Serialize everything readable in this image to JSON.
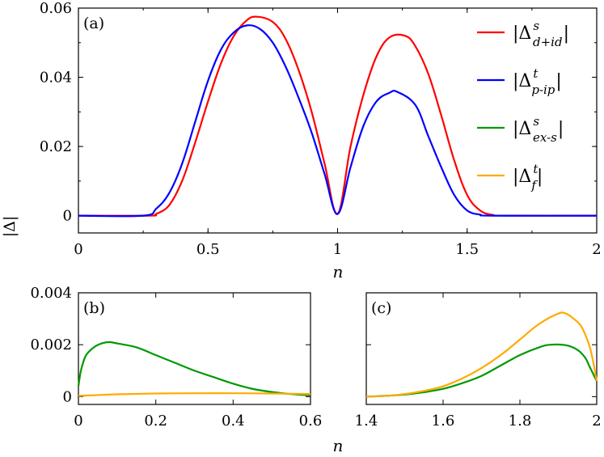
{
  "chart_data": [
    {
      "id": "a",
      "type": "line",
      "panel_label": "(a)",
      "xlabel": "n",
      "ylabel": "|Δ|",
      "xlim": [
        0,
        2
      ],
      "ylim": [
        -0.005,
        0.06
      ],
      "xticks": [
        "0",
        "0.5",
        "1",
        "1.5",
        "2"
      ],
      "yticks": [
        "0",
        "0.02",
        "0.04",
        "0.06"
      ],
      "legend_position": "right",
      "series": [
        {
          "name": "|Δ^s_{d+id}|",
          "color": "#ff0000",
          "x": [
            0,
            0.27,
            0.3,
            0.35,
            0.4,
            0.45,
            0.5,
            0.55,
            0.6,
            0.65,
            0.69,
            0.75,
            0.8,
            0.85,
            0.9,
            0.95,
            1.0,
            1.05,
            1.1,
            1.15,
            1.2,
            1.26,
            1.3,
            1.35,
            1.4,
            1.45,
            1.5,
            1.55,
            1.6,
            1.65,
            2.0
          ],
          "y": [
            0,
            0,
            0.0005,
            0.003,
            0.01,
            0.021,
            0.033,
            0.044,
            0.052,
            0.0565,
            0.0575,
            0.056,
            0.051,
            0.042,
            0.03,
            0.015,
            0.0005,
            0.02,
            0.035,
            0.046,
            0.0515,
            0.052,
            0.049,
            0.041,
            0.029,
            0.016,
            0.006,
            0.0015,
            0.0002,
            0,
            0
          ]
        },
        {
          "name": "|Δ^t_{p-ip}|",
          "color": "#0000ff",
          "x": [
            0,
            0.25,
            0.3,
            0.35,
            0.4,
            0.45,
            0.5,
            0.55,
            0.6,
            0.65,
            0.7,
            0.75,
            0.8,
            0.85,
            0.9,
            0.95,
            1.0,
            1.05,
            1.1,
            1.15,
            1.2,
            1.23,
            1.3,
            1.35,
            1.4,
            1.45,
            1.5,
            1.55,
            1.6,
            2.0
          ],
          "y": [
            0,
            0,
            0.002,
            0.0065,
            0.015,
            0.027,
            0.039,
            0.048,
            0.053,
            0.055,
            0.054,
            0.05,
            0.043,
            0.034,
            0.024,
            0.012,
            0.0005,
            0.014,
            0.026,
            0.033,
            0.0355,
            0.0358,
            0.032,
            0.023,
            0.014,
            0.006,
            0.0015,
            0.0003,
            0,
            0
          ]
        },
        {
          "name": "|Δ^s_{ex-s}|",
          "color": "#009900",
          "x": [],
          "y": []
        },
        {
          "name": "|Δ^t_f|",
          "color": "#ffaa00",
          "x": [],
          "y": []
        }
      ],
      "legend_labels": [
        {
          "base": "|Δ",
          "sup": "s",
          "sub": "d+id",
          "end": "|"
        },
        {
          "base": "|Δ",
          "sup": "t",
          "sub": "p-ip",
          "end": "|"
        },
        {
          "base": "|Δ",
          "sup": "s",
          "sub": "ex-s",
          "end": "|"
        },
        {
          "base": "|Δ",
          "sup": "t",
          "sub": "f",
          "end": "|"
        }
      ]
    },
    {
      "id": "b",
      "type": "line",
      "panel_label": "(b)",
      "xlabel": "n",
      "xlim": [
        0,
        0.6
      ],
      "ylim": [
        -0.0003,
        0.004
      ],
      "xticks": [
        "0",
        "0.2",
        "0.4",
        "0.6"
      ],
      "yticks": [
        "0",
        "0.002",
        "0.004"
      ],
      "series": [
        {
          "name": "|Δ^s_{ex-s}|",
          "color": "#009900",
          "x": [
            0,
            0.005,
            0.01,
            0.02,
            0.04,
            0.06,
            0.08,
            0.1,
            0.15,
            0.2,
            0.25,
            0.3,
            0.35,
            0.4,
            0.45,
            0.5,
            0.55,
            0.6
          ],
          "y": [
            0.0004,
            0.0009,
            0.0012,
            0.0016,
            0.0019,
            0.00205,
            0.0021,
            0.00205,
            0.0019,
            0.0016,
            0.0013,
            0.001,
            0.00075,
            0.0005,
            0.0003,
            0.00018,
            0.0001,
            5e-05
          ]
        },
        {
          "name": "|Δ^t_f|",
          "color": "#ffaa00",
          "x": [
            0,
            0.05,
            0.1,
            0.2,
            0.3,
            0.4,
            0.5,
            0.6
          ],
          "y": [
            3e-05,
            6e-05,
            9e-05,
            0.00012,
            0.00013,
            0.00013,
            0.00012,
            0.0001
          ]
        }
      ]
    },
    {
      "id": "c",
      "type": "line",
      "panel_label": "(c)",
      "xlabel": "",
      "xlim": [
        1.4,
        2.0
      ],
      "ylim": [
        -0.0003,
        0.004
      ],
      "xticks": [
        "1.4",
        "1.6",
        "1.8",
        "2"
      ],
      "yticks": [],
      "series": [
        {
          "name": "|Δ^s_{ex-s}|",
          "color": "#009900",
          "x": [
            1.4,
            1.45,
            1.5,
            1.55,
            1.6,
            1.65,
            1.7,
            1.75,
            1.8,
            1.85,
            1.88,
            1.92,
            1.95,
            1.97,
            1.98,
            1.99,
            2.0
          ],
          "y": [
            0,
            3e-05,
            8e-05,
            0.00017,
            0.0003,
            0.00052,
            0.0008,
            0.0012,
            0.0016,
            0.0019,
            0.002,
            0.00198,
            0.0018,
            0.0015,
            0.0012,
            0.0009,
            0.0006
          ]
        },
        {
          "name": "|Δ^t_f|",
          "color": "#ffaa00",
          "x": [
            1.4,
            1.45,
            1.5,
            1.55,
            1.6,
            1.65,
            1.7,
            1.75,
            1.8,
            1.85,
            1.9,
            1.92,
            1.94,
            1.96,
            1.98,
            1.99,
            2.0
          ],
          "y": [
            0,
            3e-05,
            0.0001,
            0.00022,
            0.0004,
            0.0007,
            0.0011,
            0.0016,
            0.0022,
            0.0028,
            0.0032,
            0.0032,
            0.003,
            0.0027,
            0.002,
            0.0014,
            0.0006
          ]
        }
      ]
    }
  ]
}
